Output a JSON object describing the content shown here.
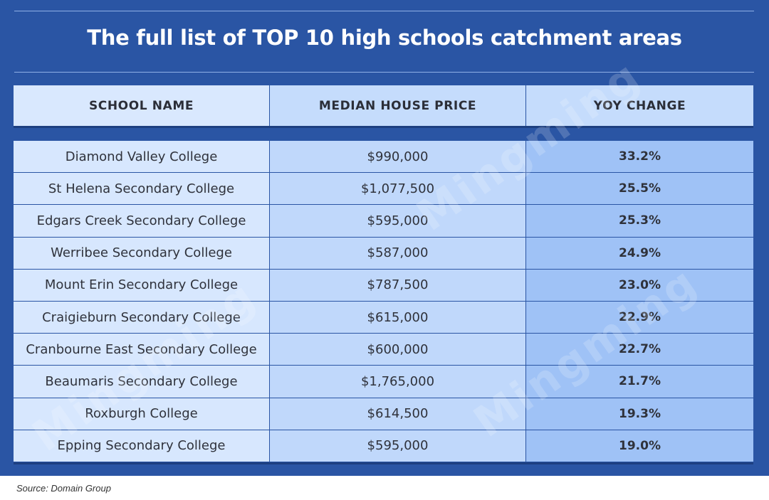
{
  "title": "The full list of TOP 10 high schools catchment areas",
  "columns": {
    "school": "SCHOOL NAME",
    "price": "MEDIAN HOUSE PRICE",
    "yoy": "YOY CHANGE"
  },
  "rows": [
    {
      "school": "Diamond Valley College",
      "price": "$990,000",
      "yoy": "33.2%"
    },
    {
      "school": "St Helena Secondary College",
      "price": "$1,077,500",
      "yoy": "25.5%"
    },
    {
      "school": "Edgars Creek Secondary College",
      "price": "$595,000",
      "yoy": "25.3%"
    },
    {
      "school": "Werribee Secondary College",
      "price": "$587,000",
      "yoy": "24.9%"
    },
    {
      "school": "Mount Erin Secondary College",
      "price": "$787,500",
      "yoy": "23.0%"
    },
    {
      "school": "Craigieburn Secondary College",
      "price": "$615,000",
      "yoy": "22.9%"
    },
    {
      "school": "Cranbourne East Secondary College",
      "price": "$600,000",
      "yoy": "22.7%"
    },
    {
      "school": "Beaumaris Secondary College",
      "price": "$1,765,000",
      "yoy": "21.7%"
    },
    {
      "school": "Roxburgh College",
      "price": "$614,500",
      "yoy": "19.3%"
    },
    {
      "school": "Epping Secondary College",
      "price": "$595,000",
      "yoy": "19.0%"
    }
  ],
  "watermark": "Mingming",
  "source": "Source: Domain Group",
  "colors": {
    "panel": "#2a55a4",
    "col_school": "#d7e7fe",
    "col_price": "#c0d8fb",
    "col_yoy": "#9fc2f6"
  }
}
